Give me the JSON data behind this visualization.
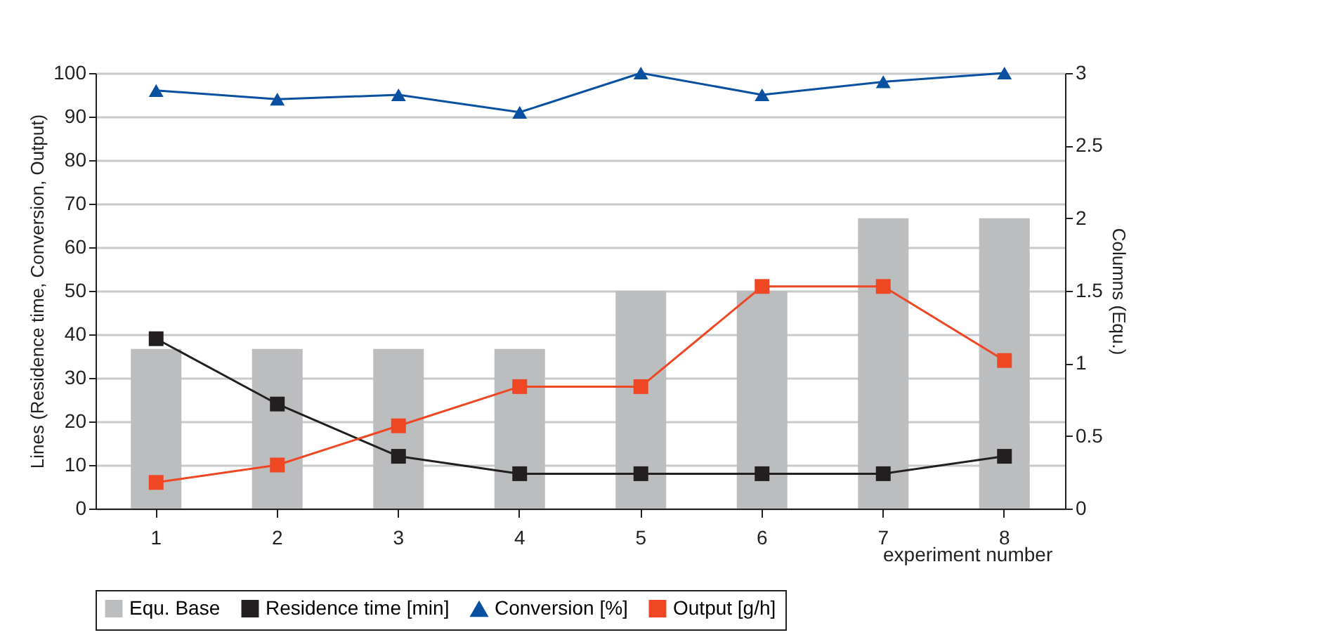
{
  "chart_data": {
    "type": "line",
    "xlabel": "experiment number",
    "ylabel": "Lines (Residence time, Conversion, Output)",
    "y2label": "Columns (Equ.)",
    "categories": [
      "1",
      "2",
      "3",
      "4",
      "5",
      "6",
      "7",
      "8"
    ],
    "series": [
      {
        "name": "Equ. Base",
        "type": "bar",
        "axis": "y2",
        "color": "#bcbdbf",
        "values": [
          1.1,
          1.1,
          1.1,
          1.1,
          1.5,
          1.5,
          2,
          2
        ]
      },
      {
        "name": "Residence time [min]",
        "marker": "square",
        "color": "#231f20",
        "values": [
          39,
          24,
          12,
          8,
          8,
          8,
          8,
          12
        ]
      },
      {
        "name": "Conversion [%]",
        "marker": "triangle",
        "color": "#0a50a1",
        "values": [
          96,
          94,
          95,
          91,
          100,
          95,
          98,
          100
        ]
      },
      {
        "name": "Output [g/h]",
        "marker": "square",
        "color": "#ef4623",
        "values": [
          6,
          10,
          19,
          28,
          28,
          51,
          51,
          34
        ]
      }
    ],
    "ylim": [
      0,
      100
    ],
    "yticks": [
      0,
      10,
      20,
      30,
      40,
      50,
      60,
      70,
      80,
      90,
      100
    ],
    "y2lim": [
      0,
      3
    ],
    "y2ticks": [
      0,
      0.5,
      1,
      1.5,
      2,
      2.5,
      3
    ],
    "grid": "y",
    "legend": "bottom",
    "line_style": "solid"
  }
}
